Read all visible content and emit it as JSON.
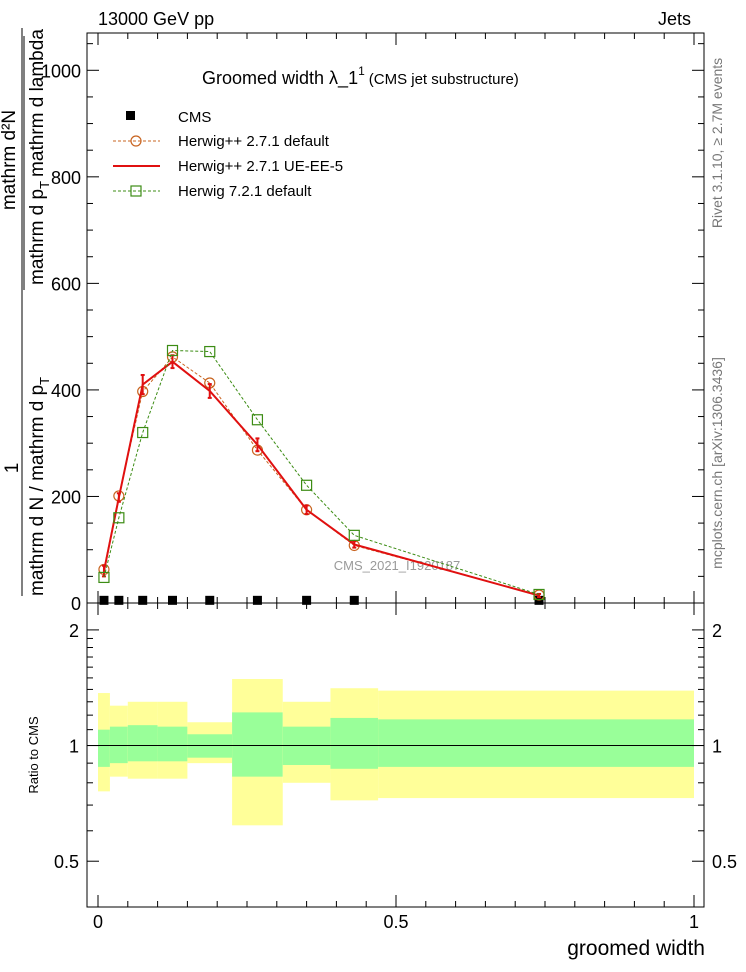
{
  "header": {
    "left": "13000 GeV pp",
    "right": "Jets"
  },
  "side_labels": {
    "rivet": "Rivet 3.1.10, ≥ 2.7M events",
    "mcplots": "mcplots.cern.ch [arXiv:1306.3436]"
  },
  "chart_data": [
    {
      "type": "line",
      "title_main": "Groomed width  λ_1",
      "title_sup": "1",
      "title_sub": "(CMS jet substructure)",
      "watermark": "CMS_2021_I1920187",
      "ylabel_top_num": "mathrm d²N",
      "ylabel_top_den": "mathrm d p",
      "ylabel_top_den_sub": "T",
      "ylabel_top_den2": "mathrm d lambda",
      "ylabel_front": "1",
      "ylabel_bottom": "mathrm d N / mathrm d p",
      "ylabel_bottom_sub": "T",
      "xlim": [
        0,
        1
      ],
      "ylim": [
        0,
        1070
      ],
      "yticks": [
        0,
        200,
        400,
        600,
        800,
        1000
      ],
      "yticklabels": [
        "0",
        "200",
        "400",
        "600",
        "800",
        "1000"
      ],
      "x": [
        0.01,
        0.035,
        0.075,
        0.125,
        0.1875,
        0.2675,
        0.35,
        0.43,
        0.74
      ],
      "series": [
        {
          "name": "CMS",
          "color": "#000000",
          "marker": "square-filled",
          "values": [
            5,
            5,
            5,
            5,
            5,
            5,
            5,
            5,
            5
          ]
        },
        {
          "name": "Herwig++ 2.7.1 default",
          "color": "#c86420",
          "marker": "circle-open",
          "line": "dashed",
          "values": [
            63,
            201,
            397,
            462,
            413,
            287,
            175,
            108,
            15
          ]
        },
        {
          "name": "Herwig++ 2.7.1 UE-EE-5",
          "color": "#e01010",
          "marker": "none",
          "line": "solid",
          "values": [
            60,
            198,
            410,
            453,
            398,
            297,
            175,
            110,
            14
          ]
        },
        {
          "name": "Herwig 7.2.1 default",
          "color": "#3c8c14",
          "marker": "square-open",
          "line": "dashed",
          "values": [
            48,
            160,
            320,
            474,
            472,
            344,
            221,
            127,
            16
          ]
        }
      ],
      "errors": [
        10,
        8,
        18,
        12,
        13,
        12,
        8,
        6,
        3
      ]
    },
    {
      "type": "area",
      "ylabel": "Ratio to CMS",
      "xlabel": "groomed width",
      "xticks": [
        0,
        0.5,
        1
      ],
      "xticklabels": [
        "0",
        "0.5",
        "1"
      ],
      "ylim": [
        0.38,
        2.35
      ],
      "yticks": [
        0.5,
        1,
        2
      ],
      "yticklabels": [
        "0.5",
        "1",
        "2"
      ],
      "reference_line": 1,
      "bin_edges": [
        0,
        0.02,
        0.05,
        0.1,
        0.15,
        0.225,
        0.31,
        0.39,
        0.47,
        1.0
      ],
      "band_inner": {
        "color": "#99ff99",
        "low": [
          0.88,
          0.9,
          0.91,
          0.91,
          0.93,
          0.83,
          0.89,
          0.87,
          0.88,
          0.88
        ],
        "high": [
          1.1,
          1.12,
          1.13,
          1.12,
          1.07,
          1.22,
          1.12,
          1.18,
          1.17,
          1.17
        ]
      },
      "band_outer": {
        "color": "#ffff99",
        "low": [
          0.76,
          0.83,
          0.82,
          0.82,
          0.9,
          0.62,
          0.8,
          0.72,
          0.73,
          0.73
        ],
        "high": [
          1.37,
          1.27,
          1.3,
          1.3,
          1.15,
          1.49,
          1.3,
          1.41,
          1.39,
          1.39
        ]
      }
    }
  ]
}
